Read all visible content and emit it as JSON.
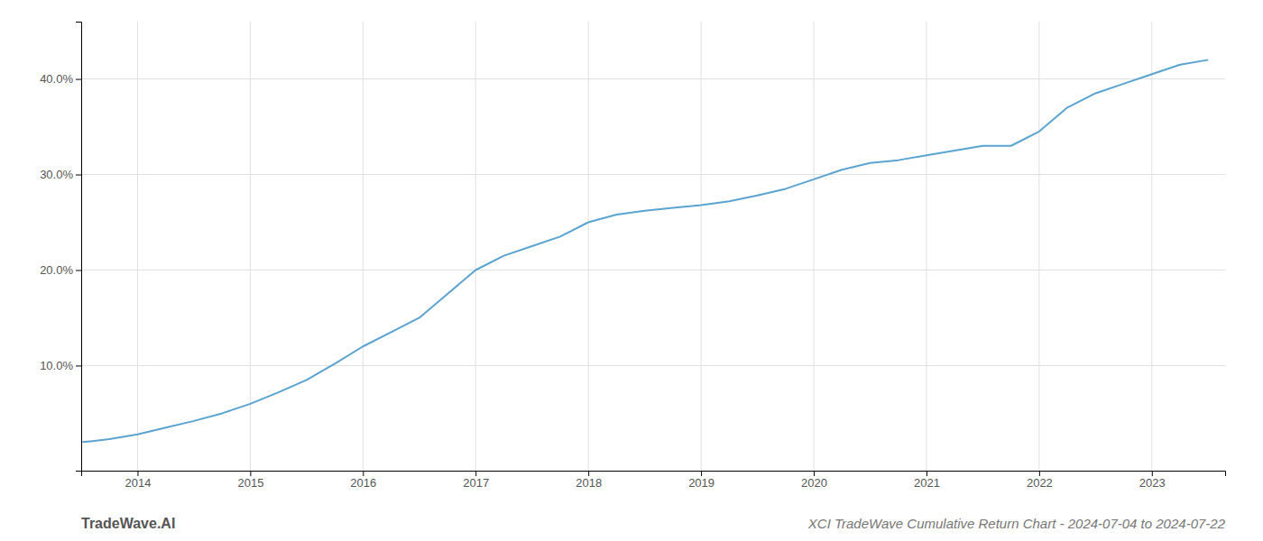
{
  "chart_data": {
    "type": "line",
    "title": "XCI TradeWave Cumulative Return Chart - 2024-07-04 to 2024-07-22",
    "annotations": [
      "TradeWave.AI"
    ],
    "x": [
      2013.51,
      2013.6,
      2013.75,
      2014.0,
      2014.25,
      2014.5,
      2014.75,
      2015.0,
      2015.25,
      2015.5,
      2015.75,
      2016.0,
      2016.25,
      2016.5,
      2016.75,
      2017.0,
      2017.25,
      2017.5,
      2017.75,
      2018.0,
      2018.25,
      2018.5,
      2018.75,
      2019.0,
      2019.25,
      2019.5,
      2019.75,
      2020.0,
      2020.25,
      2020.5,
      2020.75,
      2021.0,
      2021.25,
      2021.5,
      2021.75,
      2022.0,
      2022.25,
      2022.5,
      2022.75,
      2023.0,
      2023.25,
      2023.5
    ],
    "values": [
      2.0,
      2.1,
      2.3,
      2.8,
      3.5,
      4.2,
      5.0,
      6.0,
      7.2,
      8.5,
      10.2,
      12.0,
      13.5,
      15.0,
      17.5,
      20.0,
      21.5,
      22.5,
      23.5,
      25.0,
      25.8,
      26.2,
      26.5,
      26.8,
      27.2,
      27.8,
      28.5,
      29.5,
      30.5,
      31.2,
      31.5,
      32.0,
      32.5,
      33.0,
      33.0,
      34.5,
      37.0,
      38.5,
      39.5,
      40.5,
      41.5,
      42.0
    ],
    "color": "#5ba3d0",
    "xlim": [
      2013.5,
      2023.65
    ],
    "xticks": [
      2014,
      2015,
      2016,
      2017,
      2018,
      2019,
      2020,
      2021,
      2022,
      2023
    ],
    "ylim": [
      -1,
      46
    ],
    "yticks": [
      {
        "value": 10.0,
        "label": "10.0%"
      },
      {
        "value": 20.0,
        "label": "20.0%"
      },
      {
        "value": 30.0,
        "label": "30.0%"
      },
      {
        "value": 40.0,
        "label": "40.0%"
      }
    ],
    "grid": true
  }
}
